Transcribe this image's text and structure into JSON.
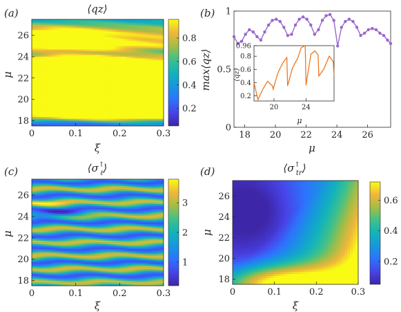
{
  "chart_data": [
    {
      "type": "heatmap",
      "panel_label": "(a)",
      "title": "⟨q_z⟩",
      "title_display": "⟨qz⟩",
      "xlabel": "ξ",
      "ylabel": "μ",
      "xlim": [
        0,
        0.3
      ],
      "ylim": [
        17.5,
        27.5
      ],
      "xticks": [
        "0",
        "0.1",
        "0.2",
        "0.3"
      ],
      "yticks": [
        "18",
        "20",
        "22",
        "24",
        "26"
      ],
      "colorbar": {
        "ticks": [
          "0.2",
          "0.4",
          "0.6",
          "0.8"
        ],
        "range": [
          0.05,
          0.96
        ],
        "colormap": "parula"
      },
      "pattern": "horizontal bands in μ, bright (≈0.9) bands near μ≈24, 22, 20 and 19 concentrated at ξ≈0.1–0.2, dark (≈0.1) near μ≈24.3 and μ≈17.6 at small ξ"
    },
    {
      "type": "line",
      "panel_label": "(b)",
      "xlabel": "μ",
      "ylabel": "max⟨q_z⟩",
      "ylabel_display": "max⟨qz⟩",
      "xlim": [
        17.3,
        27.5
      ],
      "ylim": [
        0,
        1
      ],
      "xticks": [
        "18",
        "20",
        "22",
        "24",
        "26"
      ],
      "yticks": [
        "0",
        "0.5",
        "1"
      ],
      "color": "#9966cc",
      "series": [
        {
          "x": [
            17.3,
            17.55,
            17.8,
            18.05,
            18.3,
            18.55,
            18.8,
            19.05,
            19.3,
            19.55,
            19.8,
            20.05,
            20.3,
            20.55,
            20.8,
            21.05,
            21.3,
            21.55,
            21.8,
            22.05,
            22.3,
            22.55,
            22.8,
            23.05,
            23.3,
            23.55,
            23.8,
            24.05,
            24.3,
            24.55,
            24.8,
            25.05,
            25.3,
            25.55,
            25.8,
            26.05,
            26.3,
            26.55,
            26.8,
            27.05,
            27.3,
            27.5
          ],
          "y": [
            0.78,
            0.72,
            0.74,
            0.8,
            0.84,
            0.82,
            0.78,
            0.75,
            0.82,
            0.88,
            0.92,
            0.93,
            0.91,
            0.86,
            0.79,
            0.8,
            0.88,
            0.93,
            0.95,
            0.93,
            0.88,
            0.8,
            0.84,
            0.92,
            0.96,
            0.97,
            0.92,
            0.7,
            0.86,
            0.91,
            0.93,
            0.91,
            0.86,
            0.79,
            0.81,
            0.84,
            0.85,
            0.84,
            0.81,
            0.79,
            0.75,
            0.72
          ]
        }
      ],
      "inset": {
        "type": "line",
        "xlabel": "μ",
        "ylabel": "⟨q_z⟩",
        "ylabel_display": "⟨qz⟩",
        "xlim": [
          17.5,
          27.5
        ],
        "ylim": [
          0.12,
          0.96
        ],
        "xticks": [
          "20",
          "24"
        ],
        "yticks": [
          "0.2",
          "0.4",
          "0.6",
          "0.8",
          "0.96"
        ],
        "color": "#ee7722",
        "x": [
          17.5,
          18.0,
          18.6,
          19.2,
          19.8,
          19.9,
          20.5,
          21.1,
          21.6,
          21.7,
          22.3,
          23.0,
          23.4,
          23.9,
          24.0,
          24.6,
          25.1,
          25.5,
          25.6,
          26.2,
          26.9,
          27.4,
          27.5
        ],
        "y": [
          0.4,
          0.14,
          0.3,
          0.42,
          0.35,
          0.3,
          0.55,
          0.7,
          0.78,
          0.35,
          0.62,
          0.78,
          0.93,
          0.96,
          0.36,
          0.83,
          0.88,
          0.82,
          0.5,
          0.6,
          0.8,
          0.72,
          0.5
        ]
      }
    },
    {
      "type": "heatmap",
      "panel_label": "(c)",
      "title": "⟨σ_ℓ^↑⟩",
      "xlabel": "ξ",
      "ylabel": "μ",
      "xlim": [
        0,
        0.3
      ],
      "ylim": [
        17.5,
        27.5
      ],
      "xticks": [
        "0",
        "0.1",
        "0.2",
        "0.3"
      ],
      "yticks": [
        "18",
        "20",
        "22",
        "24",
        "26"
      ],
      "colorbar": {
        "ticks": [
          "1",
          "2",
          "3"
        ],
        "range": [
          0.2,
          3.8
        ],
        "colormap": "parula"
      },
      "pattern": "horizontal stripes in μ, alternating green/yellow (≈2.5–3.5) and blue (≈1) with wavy structure at small ξ; dark blue near μ≈24.2"
    },
    {
      "type": "heatmap",
      "panel_label": "(d)",
      "title": "⟨σ_tr^↑⟩",
      "xlabel": "ξ",
      "ylabel": "μ",
      "xlim": [
        0,
        0.3
      ],
      "ylim": [
        17.5,
        27.5
      ],
      "xticks": [
        "0",
        "0.1",
        "0.2",
        "0.3"
      ],
      "yticks": [
        "18",
        "20",
        "22",
        "24",
        "26"
      ],
      "colorbar": {
        "ticks": [
          "0.2",
          "0.4",
          "0.6"
        ],
        "range": [
          0.05,
          0.72
        ],
        "colormap": "parula"
      },
      "pattern": "smooth gradient; low (dark blue ≈0.05) at small ξ and large μ, high (yellow ≈0.7) at small μ near ξ≈0.1 and at large ξ near 0.3"
    }
  ]
}
